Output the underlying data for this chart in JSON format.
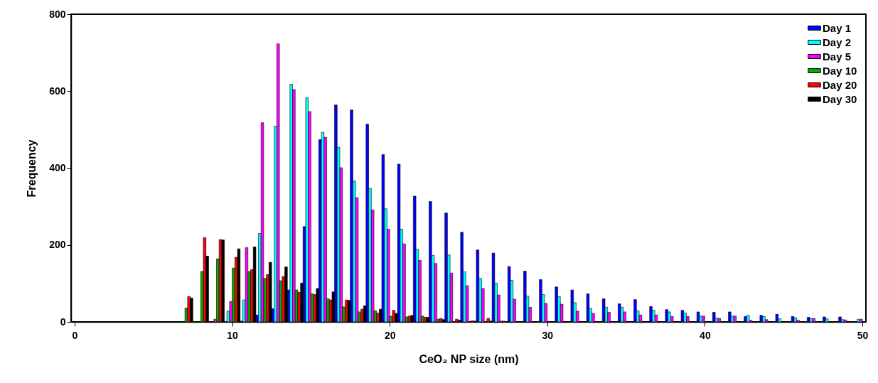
{
  "chart_data": {
    "type": "bar",
    "xlabel": "CeO₂ NP size (nm)",
    "ylabel": "Frequency",
    "x": [
      7,
      8,
      9,
      10,
      11,
      12,
      13,
      14,
      15,
      16,
      17,
      18,
      19,
      20,
      21,
      22,
      23,
      24,
      25,
      26,
      27,
      28,
      29,
      30,
      31,
      32,
      33,
      34,
      35,
      36,
      37,
      38,
      39,
      40,
      41,
      42,
      43,
      44,
      45,
      46,
      47,
      48,
      49,
      50
    ],
    "xlim": [
      0,
      50
    ],
    "xticks": [
      0,
      10,
      20,
      30,
      40,
      50
    ],
    "ylim": [
      0,
      800
    ],
    "yticks": [
      0,
      200,
      400,
      600,
      800
    ],
    "legend": "top right",
    "series": [
      {
        "name": "Day 1",
        "color": "#0000ff",
        "values": [
          null,
          null,
          null,
          null,
          2,
          18,
          34,
          83,
          248,
          474,
          564,
          551,
          514,
          435,
          410,
          327,
          313,
          283,
          233,
          187,
          179,
          144,
          132,
          110,
          91,
          83,
          73,
          60,
          47,
          58,
          40,
          32,
          30,
          26,
          25,
          26,
          14,
          17,
          20,
          14,
          12,
          13,
          13,
          null
        ]
      },
      {
        "name": "Day 2",
        "color": "#00ffff",
        "values": [
          null,
          null,
          null,
          28,
          57,
          230,
          509,
          618,
          583,
          493,
          454,
          366,
          347,
          294,
          241,
          189,
          173,
          174,
          130,
          113,
          101,
          108,
          67,
          71,
          66,
          50,
          35,
          38,
          38,
          29,
          30,
          26,
          23,
          15,
          10,
          15,
          17,
          14,
          8,
          11,
          9,
          8,
          6,
          7
        ]
      },
      {
        "name": "Day 5",
        "color": "#ff00ff",
        "values": [
          null,
          null,
          7,
          53,
          193,
          518,
          723,
          604,
          547,
          480,
          401,
          323,
          291,
          241,
          203,
          160,
          152,
          127,
          94,
          87,
          70,
          59,
          38,
          48,
          46,
          28,
          22,
          25,
          26,
          18,
          18,
          14,
          14,
          15,
          9,
          15,
          4,
          6,
          null,
          4,
          9,
          null,
          5,
          7
        ]
      },
      {
        "name": "Day 10",
        "color": "#00aa00",
        "values": [
          36,
          131,
          164,
          140,
          131,
          113,
          107,
          83,
          73,
          60,
          39,
          26,
          29,
          15,
          13,
          15,
          7,
          null,
          null,
          null,
          2,
          null,
          null,
          null,
          null,
          null,
          null,
          null,
          null,
          null,
          null,
          null,
          null,
          null,
          null,
          null,
          null,
          null,
          null,
          null,
          null,
          null,
          null,
          null
        ]
      },
      {
        "name": "Day 20",
        "color": "#ff0000",
        "values": [
          66,
          219,
          214,
          168,
          136,
          123,
          118,
          77,
          71,
          57,
          57,
          33,
          23,
          30,
          15,
          12,
          9,
          7,
          3,
          9,
          2,
          null,
          null,
          null,
          null,
          null,
          null,
          null,
          null,
          null,
          null,
          null,
          null,
          null,
          null,
          null,
          null,
          null,
          null,
          null,
          null,
          null,
          null,
          null
        ]
      },
      {
        "name": "Day 30",
        "color": "#000000",
        "values": [
          62,
          171,
          213,
          190,
          195,
          155,
          143,
          101,
          87,
          78,
          56,
          42,
          33,
          22,
          17,
          12,
          6,
          4,
          2,
          2,
          null,
          null,
          null,
          null,
          null,
          null,
          null,
          null,
          null,
          null,
          null,
          null,
          null,
          null,
          null,
          null,
          null,
          null,
          null,
          null,
          null,
          null,
          null,
          null
        ]
      }
    ]
  }
}
